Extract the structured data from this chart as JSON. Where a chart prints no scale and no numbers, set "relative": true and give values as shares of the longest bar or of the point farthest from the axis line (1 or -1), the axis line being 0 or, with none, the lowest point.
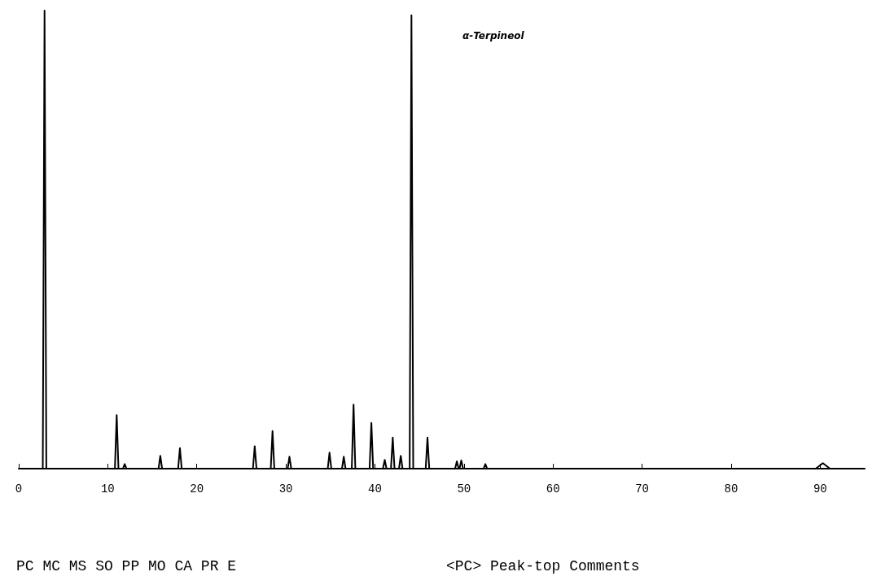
{
  "chart_data": {
    "type": "line",
    "relative": true,
    "color": "#000000",
    "grid": false,
    "tick_labels": "x",
    "marker": "none",
    "line_style": "solid",
    "x": [
      0,
      2.7,
      2.9,
      3.1,
      10.8,
      11.0,
      11.2,
      11.7,
      11.9,
      12.1,
      15.7,
      15.9,
      16.1,
      17.9,
      18.1,
      18.3,
      26.3,
      26.5,
      26.7,
      28.3,
      28.5,
      28.7,
      30.2,
      30.4,
      30.6,
      34.7,
      34.9,
      35.1,
      36.3,
      36.5,
      36.7,
      37.4,
      37.6,
      37.8,
      39.4,
      39.6,
      39.8,
      40.9,
      41.1,
      41.3,
      41.8,
      42.0,
      42.2,
      42.7,
      42.9,
      43.1,
      43.9,
      44.1,
      44.3,
      45.7,
      45.9,
      46.1,
      49.0,
      49.2,
      49.4,
      49.5,
      49.7,
      49.9,
      52.2,
      52.4,
      52.6,
      89.5,
      90.3,
      91.1,
      95
    ],
    "values": [
      0,
      0,
      1.0,
      0,
      0,
      0.117,
      0,
      0,
      0.01,
      0,
      0,
      0.028,
      0,
      0,
      0.045,
      0,
      0,
      0.049,
      0,
      0,
      0.082,
      0,
      0,
      0.026,
      0,
      0,
      0.035,
      0,
      0,
      0.026,
      0,
      0,
      0.14,
      0,
      0,
      0.1,
      0,
      0,
      0.019,
      0,
      0,
      0.068,
      0,
      0,
      0.028,
      0,
      0,
      0.99,
      0,
      0,
      0.068,
      0,
      0,
      0.016,
      0,
      0,
      0.018,
      0,
      0,
      0.01,
      0,
      0,
      0.012,
      0,
      0
    ],
    "xlim": [
      0,
      95
    ],
    "xticks": [
      0,
      10,
      20,
      30,
      40,
      50,
      60,
      70,
      80,
      90
    ],
    "annotations": [
      "α-Terpineol",
      "PC MC MS SO PP MO CA PR E",
      "<PC> Peak-top Comments"
    ]
  }
}
